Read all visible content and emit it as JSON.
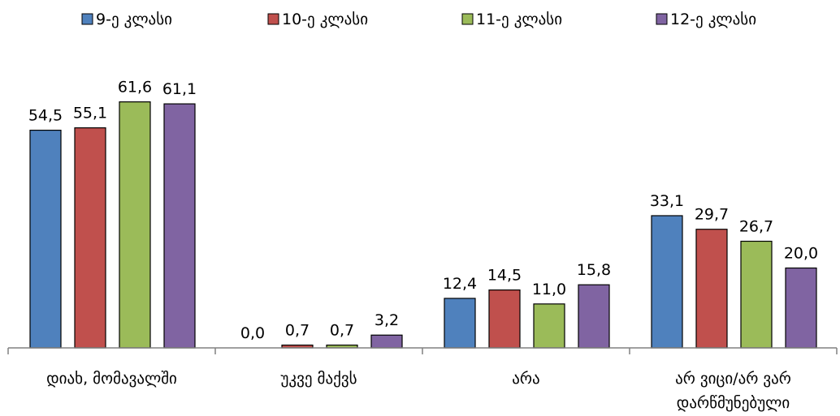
{
  "chart_data": {
    "type": "bar",
    "title": "",
    "xlabel": "",
    "ylabel": "",
    "ylim": [
      0,
      65
    ],
    "grid": false,
    "legend": "top",
    "categories": [
      [
        "დიახ, მომავალში"
      ],
      [
        "უკვე მაქვს"
      ],
      [
        "არა"
      ],
      [
        "არ ვიცი/არ ვარ",
        "დარწმუნებული"
      ]
    ],
    "series": [
      {
        "name": "9-ე კლასი",
        "color": "#4F81BD",
        "values": [
          54.5,
          0.0,
          12.4,
          33.1
        ]
      },
      {
        "name": "10-ე კლასი",
        "color": "#C0504D",
        "values": [
          55.1,
          0.7,
          14.5,
          29.7
        ]
      },
      {
        "name": "11-ე კლასი",
        "color": "#9BBB59",
        "values": [
          61.6,
          0.7,
          11.0,
          26.7
        ]
      },
      {
        "name": "12-ე კლასი",
        "color": "#8064A2",
        "values": [
          61.1,
          3.2,
          15.8,
          20.0
        ]
      }
    ],
    "value_labels": [
      [
        "54,5",
        "0,0",
        "12,4",
        "33,1"
      ],
      [
        "55,1",
        "0,7",
        "14,5",
        "29,7"
      ],
      [
        "61,6",
        "0,7",
        "11,0",
        "26,7"
      ],
      [
        "61,1",
        "3,2",
        "15,8",
        "20,0"
      ]
    ]
  }
}
